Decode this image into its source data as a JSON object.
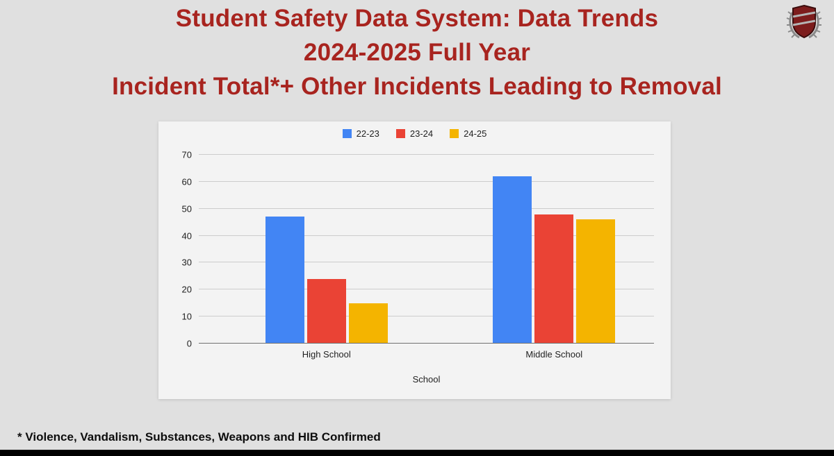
{
  "slide": {
    "title_lines": [
      "Student Safety Data System: Data Trends",
      "2024-2025 Full Year",
      "Incident Total*+ Other Incidents Leading to Removal"
    ],
    "title_color": "#a8241f",
    "footnote": "* Violence, Vandalism, Substances, Weapons and HIB Confirmed",
    "logo_icon": "school-crest-icon"
  },
  "chart_data": {
    "type": "bar",
    "title": "",
    "categories": [
      "High School",
      "Middle School"
    ],
    "series": [
      {
        "name": "22-23",
        "color": "#4285f4",
        "values": [
          47,
          62
        ]
      },
      {
        "name": "23-24",
        "color": "#ea4335",
        "values": [
          24,
          48
        ]
      },
      {
        "name": "24-25",
        "color": "#f4b400",
        "values": [
          15,
          46
        ]
      }
    ],
    "xlabel": "School",
    "ylabel": "",
    "ylim": [
      0,
      70
    ],
    "yticks": [
      0,
      10,
      20,
      30,
      40,
      50,
      60,
      70
    ],
    "grid": true,
    "legend_position": "top"
  }
}
